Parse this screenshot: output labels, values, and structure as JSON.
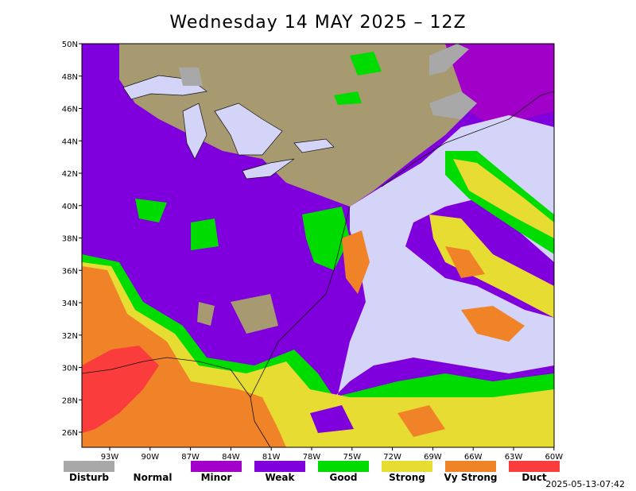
{
  "title": "Wednesday 14 MAY 2025 – 12Z",
  "lat_labels": [
    "50N",
    "48N",
    "46N",
    "44N",
    "42N",
    "40N",
    "38N",
    "36N",
    "34N",
    "32N",
    "30N",
    "28N",
    "26N"
  ],
  "lon_labels": [
    "93W",
    "90W",
    "87W",
    "84W",
    "81W",
    "78W",
    "75W",
    "72W",
    "69W",
    "66W",
    "63W",
    "60W"
  ],
  "legend": [
    {
      "label": "Disturb",
      "color": "#a8a8a8"
    },
    {
      "label": "Normal",
      "color": "#ffffff"
    },
    {
      "label": "Minor",
      "color": "#a000c8"
    },
    {
      "label": "Weak",
      "color": "#7f00dc"
    },
    {
      "label": "Good",
      "color": "#00dc00"
    },
    {
      "label": "Strong",
      "color": "#e6dc32"
    },
    {
      "label": "Vy Strong",
      "color": "#f08228"
    },
    {
      "label": "Duct",
      "color": "#fa3c3c"
    }
  ],
  "timestamp": "2025-05-13-07:42"
}
